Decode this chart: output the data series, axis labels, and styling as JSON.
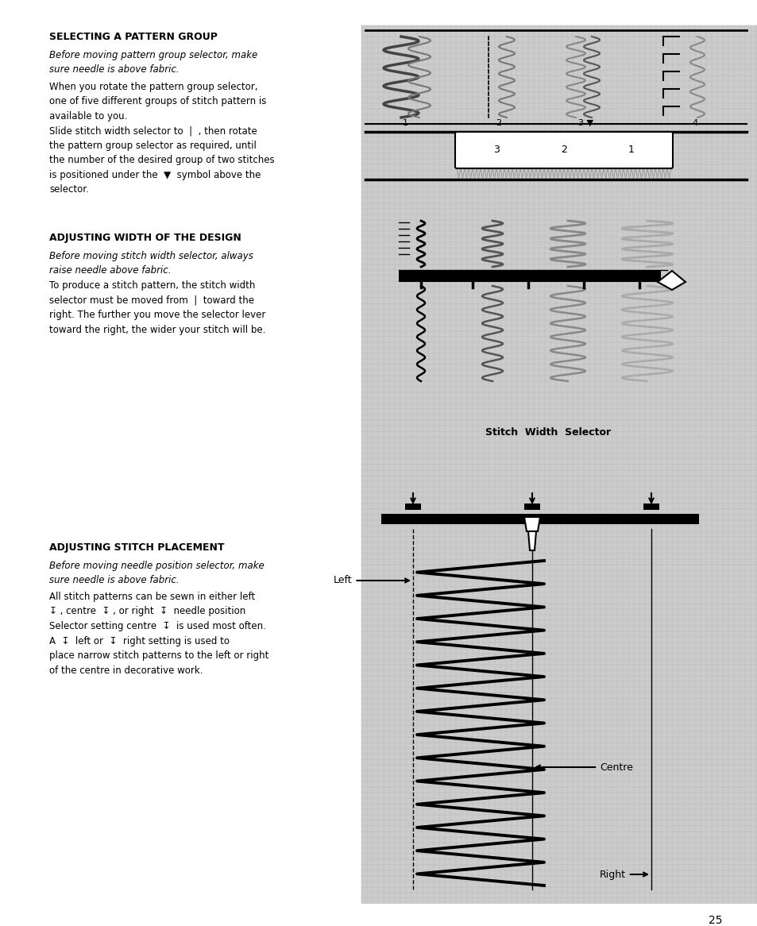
{
  "page_bg": "#ffffff",
  "grid_bg": "#cccccc",
  "page_width": 9.54,
  "page_height": 11.66,
  "page_number": "25",
  "section1_title": "SELECTING A PATTERN GROUP",
  "section1_italic1": "Before moving pattern group selector, make\nsure needle is above fabric.",
  "section1_body": "When you rotate the pattern group selector,\none of five different groups of stitch pattern is\navailable to you.\nSlide stitch width selector to  |  , then rotate\nthe pattern group selector as required, until\nthe number of the desired group of two stitches\nis positioned under the  ▼  symbol above the\nselector.",
  "section2_title": "ADJUSTING WIDTH OF THE DESIGN",
  "section2_italic1": "Before moving stitch width selector, always\nraise needle above fabric.",
  "section2_body": "To produce a stitch pattern, the stitch width\nselector must be moved from  |  toward the\nright. The further you move the selector lever\ntoward the right, the wider your stitch will be.",
  "section2_caption": "Stitch  Width  Selector",
  "section3_title": "ADJUSTING STITCH PLACEMENT",
  "section3_italic1": "Before moving needle position selector, make\nsure needle is above fabric.",
  "section3_body": "All stitch patterns can be sewn in either left\n↧ , centre  ↧ , or right  ↧  needle position\nSelector setting centre  ↧  is used most often.\nA  ↧  left or  ↧  right setting is used to\nplace narrow stitch patterns to the left or right\nof the centre in decorative work.",
  "left_label": "Left",
  "centre_label": "Centre",
  "right_label": "Right"
}
